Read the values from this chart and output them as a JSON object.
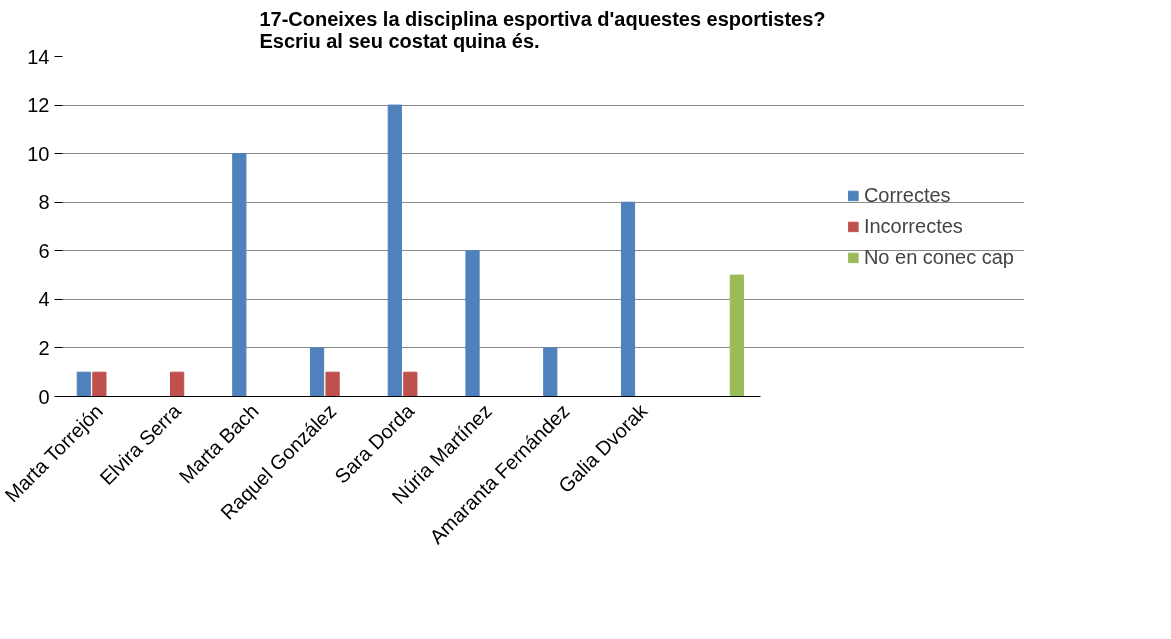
{
  "chart_data": {
    "type": "bar",
    "title": "17-Coneixes la disciplina esportiva d'aquestes esportistes?\nEscriu al seu costat quina és.",
    "categories": [
      "Marta Torrejón",
      "Elvira Serra",
      "Marta Bach",
      "Raquel González",
      "Sara Dorda",
      "Núria Martínez",
      "Amaranta Fernández",
      "Galia Dvorak",
      null
    ],
    "series": [
      {
        "name": "Correctes",
        "color": "#4f81bd",
        "values": [
          1,
          null,
          10,
          2,
          12,
          6,
          2,
          8,
          null
        ]
      },
      {
        "name": "Incorrectes",
        "color": "#c0504d",
        "values": [
          1,
          1,
          null,
          1,
          1,
          null,
          null,
          null,
          null
        ]
      },
      {
        "name": "No en conec cap",
        "color": "#9bbb59",
        "values": [
          null,
          null,
          null,
          null,
          null,
          null,
          null,
          null,
          5
        ]
      }
    ],
    "ylim": [
      0,
      14
    ],
    "yticks": [
      0,
      2,
      4,
      6,
      8,
      10,
      12,
      14
    ],
    "grid": "y",
    "legend": "right"
  }
}
